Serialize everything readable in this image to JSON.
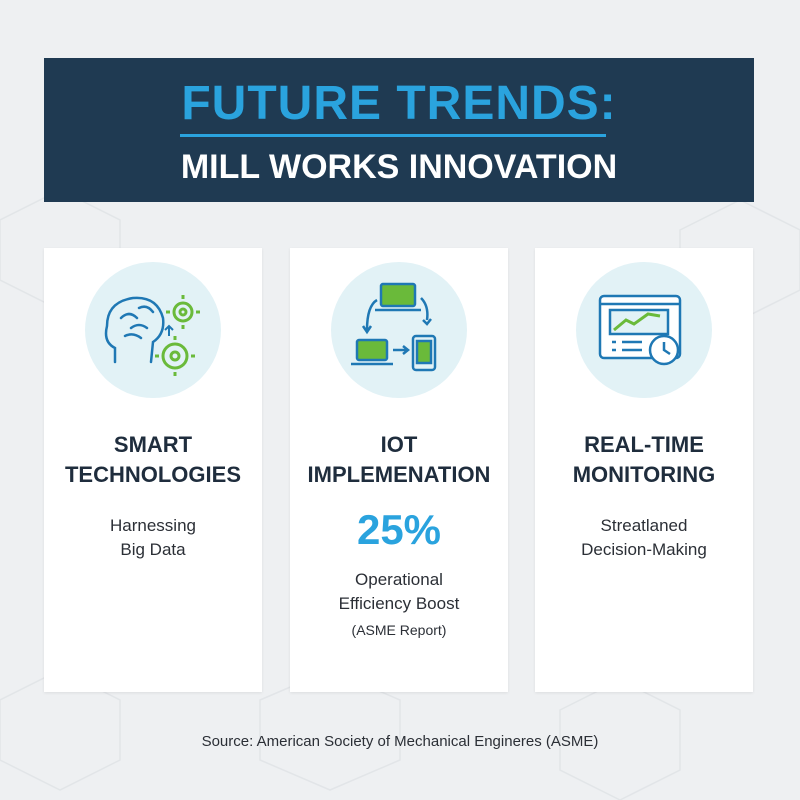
{
  "header": {
    "title": "FUTURE TRENDS:",
    "subtitle": "MILL WORKS INNOVATION"
  },
  "cards": [
    {
      "title": [
        "SMART",
        "TECHNOLOGIES"
      ],
      "description": [
        "Harnessing",
        "Big Data"
      ]
    },
    {
      "title": [
        "IOT",
        "IMPLEMENATION"
      ],
      "stat": "25%",
      "description": [
        "Operational",
        "Efficiency Boost"
      ],
      "note": "(ASME Report)"
    },
    {
      "title": [
        "REAL-TIME",
        "MONITORING"
      ],
      "description": [
        "Streatlaned",
        "Decision-Making"
      ]
    }
  ],
  "footer": {
    "source": "Source: American Society of Mechanical Engineres (ASME)"
  }
}
